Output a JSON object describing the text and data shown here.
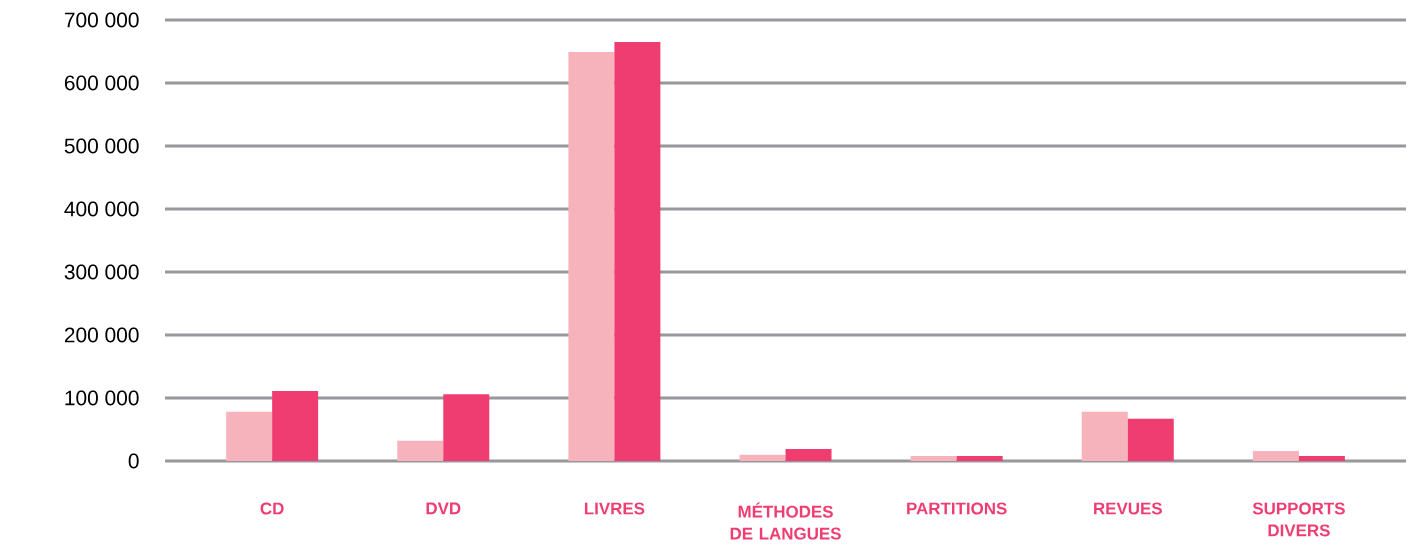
{
  "chart_data": {
    "type": "bar",
    "categories": [
      "CD",
      "DVD",
      "LIVRES",
      "MÉTHODES DE LANGUES",
      "PARTITIONS",
      "REVUES",
      "SUPPORTS DIVERS"
    ],
    "series": [
      {
        "color": "#f7b3bc",
        "values": [
          78000,
          32000,
          649000,
          10000,
          8000,
          78000,
          16000
        ]
      },
      {
        "color": "#ef3d72",
        "values": [
          111000,
          106000,
          665000,
          19000,
          8000,
          67000,
          8000
        ]
      }
    ],
    "ylim": [
      0,
      700000
    ],
    "yticks": [
      {
        "value": 0,
        "label": "0"
      },
      {
        "value": 100000,
        "label": "100 000"
      },
      {
        "value": 200000,
        "label": "200 000"
      },
      {
        "value": 300000,
        "label": "300 000"
      },
      {
        "value": 400000,
        "label": "400 000"
      },
      {
        "value": 500000,
        "label": "500 000"
      },
      {
        "value": 600000,
        "label": "600 000"
      },
      {
        "value": 700000,
        "label": "700 000"
      }
    ],
    "grid": "y"
  }
}
